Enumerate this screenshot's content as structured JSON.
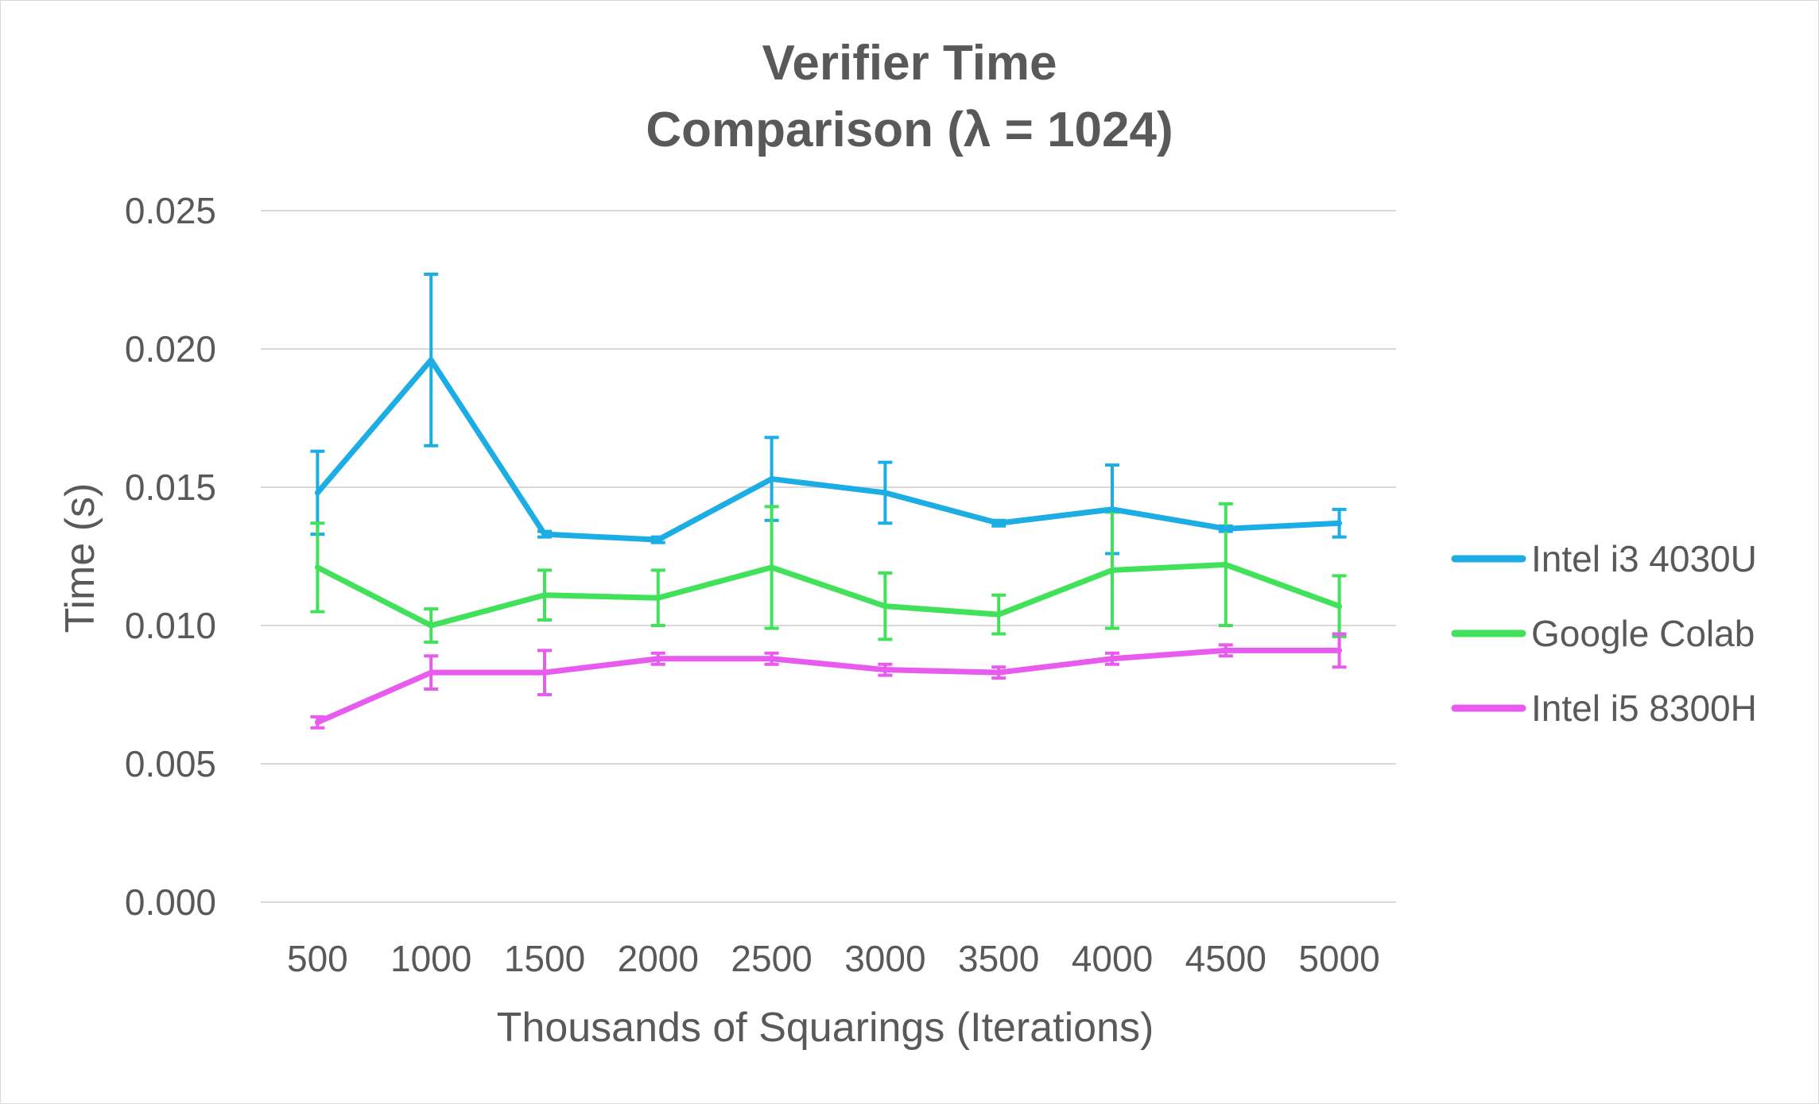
{
  "chart_data": {
    "type": "line",
    "title_line1": "Verifier Time",
    "title_line2": "Comparison (λ = 1024)",
    "xlabel": "Thousands of Squarings (Iterations)",
    "ylabel": "Time (s)",
    "ylim": [
      0,
      0.025
    ],
    "yticks": [
      "0.000",
      "0.005",
      "0.010",
      "0.015",
      "0.020",
      "0.025"
    ],
    "grid": true,
    "legend_position": "right",
    "categories": [
      "500",
      "1000",
      "1500",
      "2000",
      "2500",
      "3000",
      "3500",
      "4000",
      "4500",
      "5000"
    ],
    "series": [
      {
        "name": "Intel i3 4030U",
        "color": "#1CADE4",
        "values": [
          0.0148,
          0.0196,
          0.0133,
          0.0131,
          0.0153,
          0.0148,
          0.0137,
          0.0142,
          0.0135,
          0.0137
        ],
        "error": [
          0.0015,
          0.0031,
          0.0001,
          0.0001,
          0.0015,
          0.0011,
          0.0001,
          0.0016,
          0.0001,
          0.0005
        ]
      },
      {
        "name": "Google Colab",
        "color": "#42E15A",
        "values": [
          0.0121,
          0.01,
          0.0111,
          0.011,
          0.0121,
          0.0107,
          0.0104,
          0.012,
          0.0122,
          0.0107
        ],
        "error": [
          0.0016,
          0.0006,
          0.0009,
          0.001,
          0.0022,
          0.0012,
          0.0007,
          0.0021,
          0.0022,
          0.0011
        ]
      },
      {
        "name": "Intel i5 8300H",
        "color": "#E75BEF",
        "values": [
          0.0065,
          0.0083,
          0.0083,
          0.0088,
          0.0088,
          0.0084,
          0.0083,
          0.0088,
          0.0091,
          0.0091
        ],
        "error": [
          0.0002,
          0.0006,
          0.0008,
          0.0002,
          0.0002,
          0.0002,
          0.0002,
          0.0002,
          0.0002,
          0.0006
        ]
      }
    ]
  }
}
